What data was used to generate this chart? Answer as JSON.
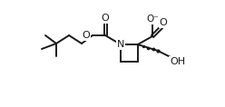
{
  "bg_color": "#ffffff",
  "line_color": "#1a1a1a",
  "line_width": 1.4,
  "bond_color": "#1a1a1a",
  "atoms": {
    "N": {
      "symbol": "N",
      "fontsize": 8
    },
    "O": {
      "symbol": "O",
      "fontsize": 8
    },
    "OH": {
      "symbol": "OH",
      "fontsize": 8
    },
    "O_neg": {
      "symbol": "O⁻",
      "fontsize": 8
    },
    "stereo_dots": "***"
  },
  "figsize": [
    2.48,
    1.18
  ],
  "dpi": 100,
  "title": ""
}
